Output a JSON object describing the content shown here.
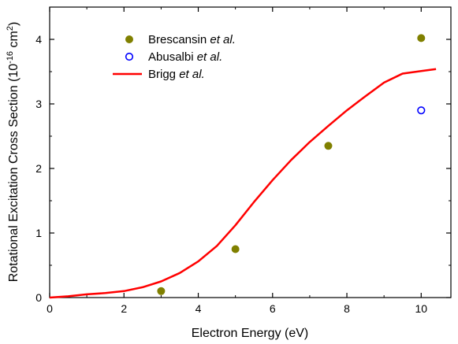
{
  "chart_data": {
    "type": "scatter",
    "xlabel": "Electron Energy (eV)",
    "ylabel": {
      "prefix": "Rotational Excitation Cross Section (10",
      "exp1": "-16",
      "mid": " cm",
      "exp2": "2",
      "suffix": ")"
    },
    "xlim": [
      0,
      10.8
    ],
    "ylim": [
      0,
      4.5
    ],
    "xticks": [
      0,
      2,
      4,
      6,
      8,
      10
    ],
    "yticks": [
      0,
      1,
      2,
      3,
      4
    ],
    "grid": false,
    "legend_position": "top-left",
    "series": [
      {
        "name": "Brescansin et al.",
        "name_main": "Brescansin ",
        "name_italic": "et al.",
        "style": "filled-circle",
        "color": "#808000",
        "x": [
          3,
          5,
          7.5,
          10
        ],
        "y": [
          0.1,
          0.75,
          2.35,
          4.02
        ]
      },
      {
        "name": "Abusalbi et al.",
        "name_main": "Abusalbi ",
        "name_italic": "et al.",
        "style": "open-circle",
        "color": "#0000ff",
        "x": [
          10
        ],
        "y": [
          2.9
        ]
      },
      {
        "name": "Brigg et al.",
        "name_main": "Brigg ",
        "name_italic": "et al.",
        "style": "line",
        "color": "#ff0000",
        "x": [
          0,
          0.5,
          1,
          1.5,
          2,
          2.5,
          3,
          3.5,
          4,
          4.5,
          5,
          5.5,
          6,
          6.5,
          7,
          7.5,
          8,
          8.5,
          9,
          9.5,
          10,
          10.4
        ],
        "y": [
          0,
          0.02,
          0.05,
          0.07,
          0.1,
          0.16,
          0.25,
          0.38,
          0.56,
          0.8,
          1.12,
          1.48,
          1.82,
          2.13,
          2.41,
          2.66,
          2.9,
          3.12,
          3.33,
          3.47,
          3.51,
          3.54
        ]
      }
    ]
  }
}
